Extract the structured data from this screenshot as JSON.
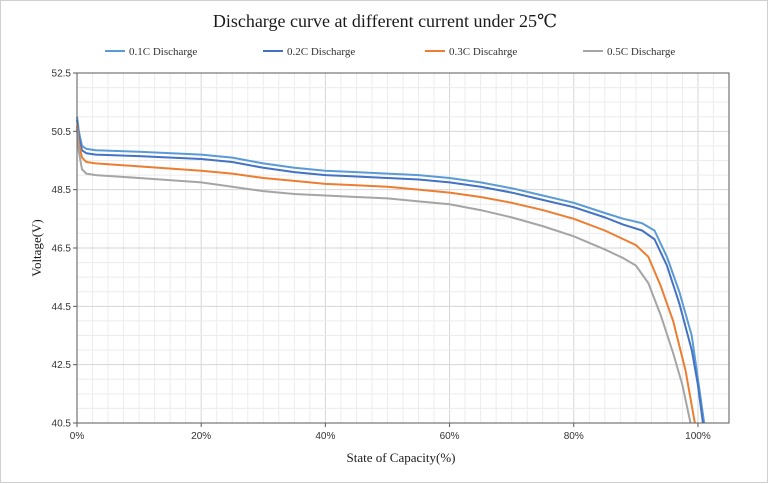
{
  "chart_data": {
    "type": "line",
    "title": "Discharge curve at different current under 25℃",
    "xlabel": "State of Capacity(%)",
    "ylabel": "Voltage(V)",
    "xlim": [
      0,
      105
    ],
    "ylim": [
      40.5,
      52.5
    ],
    "x_ticks": [
      0,
      20,
      40,
      60,
      80,
      100
    ],
    "x_tick_labels": [
      "0%",
      "20%",
      "40%",
      "60%",
      "80%",
      "100%"
    ],
    "y_ticks": [
      40.5,
      42.5,
      44.5,
      46.5,
      48.5,
      50.5,
      52.5
    ],
    "y_tick_labels": [
      "40.5",
      "42.5",
      "44.5",
      "46.5",
      "48.5",
      "50.5",
      "52.5"
    ],
    "grid": true,
    "legend_position": "top",
    "series": [
      {
        "name": "0.1C Discharge",
        "color": "#5b9bd5",
        "points": [
          [
            0,
            51.0
          ],
          [
            0.3,
            50.5
          ],
          [
            0.8,
            50.0
          ],
          [
            1.5,
            49.9
          ],
          [
            3,
            49.85
          ],
          [
            10,
            49.8
          ],
          [
            20,
            49.7
          ],
          [
            25,
            49.6
          ],
          [
            30,
            49.4
          ],
          [
            35,
            49.25
          ],
          [
            40,
            49.15
          ],
          [
            45,
            49.1
          ],
          [
            50,
            49.05
          ],
          [
            55,
            49.0
          ],
          [
            60,
            48.9
          ],
          [
            65,
            48.75
          ],
          [
            70,
            48.55
          ],
          [
            75,
            48.3
          ],
          [
            80,
            48.05
          ],
          [
            85,
            47.7
          ],
          [
            88,
            47.5
          ],
          [
            91,
            47.35
          ],
          [
            93,
            47.1
          ],
          [
            95,
            46.2
          ],
          [
            97,
            45.0
          ],
          [
            99,
            43.5
          ],
          [
            100,
            42.0
          ],
          [
            101,
            40.5
          ]
        ]
      },
      {
        "name": "0.2C Discharge",
        "color": "#4472c4",
        "points": [
          [
            0,
            50.9
          ],
          [
            0.3,
            50.3
          ],
          [
            0.8,
            49.85
          ],
          [
            1.5,
            49.75
          ],
          [
            3,
            49.7
          ],
          [
            10,
            49.65
          ],
          [
            20,
            49.55
          ],
          [
            25,
            49.45
          ],
          [
            30,
            49.25
          ],
          [
            35,
            49.1
          ],
          [
            40,
            49.0
          ],
          [
            45,
            48.95
          ],
          [
            50,
            48.9
          ],
          [
            55,
            48.85
          ],
          [
            60,
            48.75
          ],
          [
            65,
            48.6
          ],
          [
            70,
            48.4
          ],
          [
            75,
            48.15
          ],
          [
            80,
            47.9
          ],
          [
            85,
            47.55
          ],
          [
            88,
            47.3
          ],
          [
            91,
            47.1
          ],
          [
            93,
            46.8
          ],
          [
            95,
            45.9
          ],
          [
            97,
            44.6
          ],
          [
            99,
            43.0
          ],
          [
            100,
            41.8
          ],
          [
            100.8,
            40.5
          ]
        ]
      },
      {
        "name": "0.3C Discahrge",
        "color": "#ed7d31",
        "points": [
          [
            0,
            50.7
          ],
          [
            0.3,
            50.1
          ],
          [
            0.8,
            49.6
          ],
          [
            1.5,
            49.45
          ],
          [
            3,
            49.4
          ],
          [
            10,
            49.3
          ],
          [
            20,
            49.15
          ],
          [
            25,
            49.05
          ],
          [
            30,
            48.9
          ],
          [
            35,
            48.8
          ],
          [
            40,
            48.7
          ],
          [
            45,
            48.65
          ],
          [
            50,
            48.6
          ],
          [
            55,
            48.5
          ],
          [
            60,
            48.4
          ],
          [
            65,
            48.25
          ],
          [
            70,
            48.05
          ],
          [
            75,
            47.8
          ],
          [
            80,
            47.5
          ],
          [
            85,
            47.1
          ],
          [
            88,
            46.8
          ],
          [
            90,
            46.6
          ],
          [
            92,
            46.2
          ],
          [
            94,
            45.2
          ],
          [
            96,
            44.0
          ],
          [
            98,
            42.3
          ],
          [
            99.5,
            40.5
          ]
        ]
      },
      {
        "name": "0.5C Discharge",
        "color": "#a5a5a5",
        "points": [
          [
            0,
            50.6
          ],
          [
            0.3,
            49.8
          ],
          [
            0.8,
            49.2
          ],
          [
            1.5,
            49.05
          ],
          [
            3,
            49.0
          ],
          [
            10,
            48.9
          ],
          [
            20,
            48.75
          ],
          [
            25,
            48.6
          ],
          [
            30,
            48.45
          ],
          [
            35,
            48.35
          ],
          [
            40,
            48.3
          ],
          [
            45,
            48.25
          ],
          [
            50,
            48.2
          ],
          [
            55,
            48.1
          ],
          [
            60,
            48.0
          ],
          [
            65,
            47.8
          ],
          [
            70,
            47.55
          ],
          [
            75,
            47.25
          ],
          [
            80,
            46.9
          ],
          [
            85,
            46.45
          ],
          [
            88,
            46.15
          ],
          [
            90,
            45.9
          ],
          [
            92,
            45.3
          ],
          [
            94,
            44.2
          ],
          [
            96,
            42.9
          ],
          [
            97.5,
            41.8
          ],
          [
            98.8,
            40.5
          ]
        ]
      }
    ]
  }
}
